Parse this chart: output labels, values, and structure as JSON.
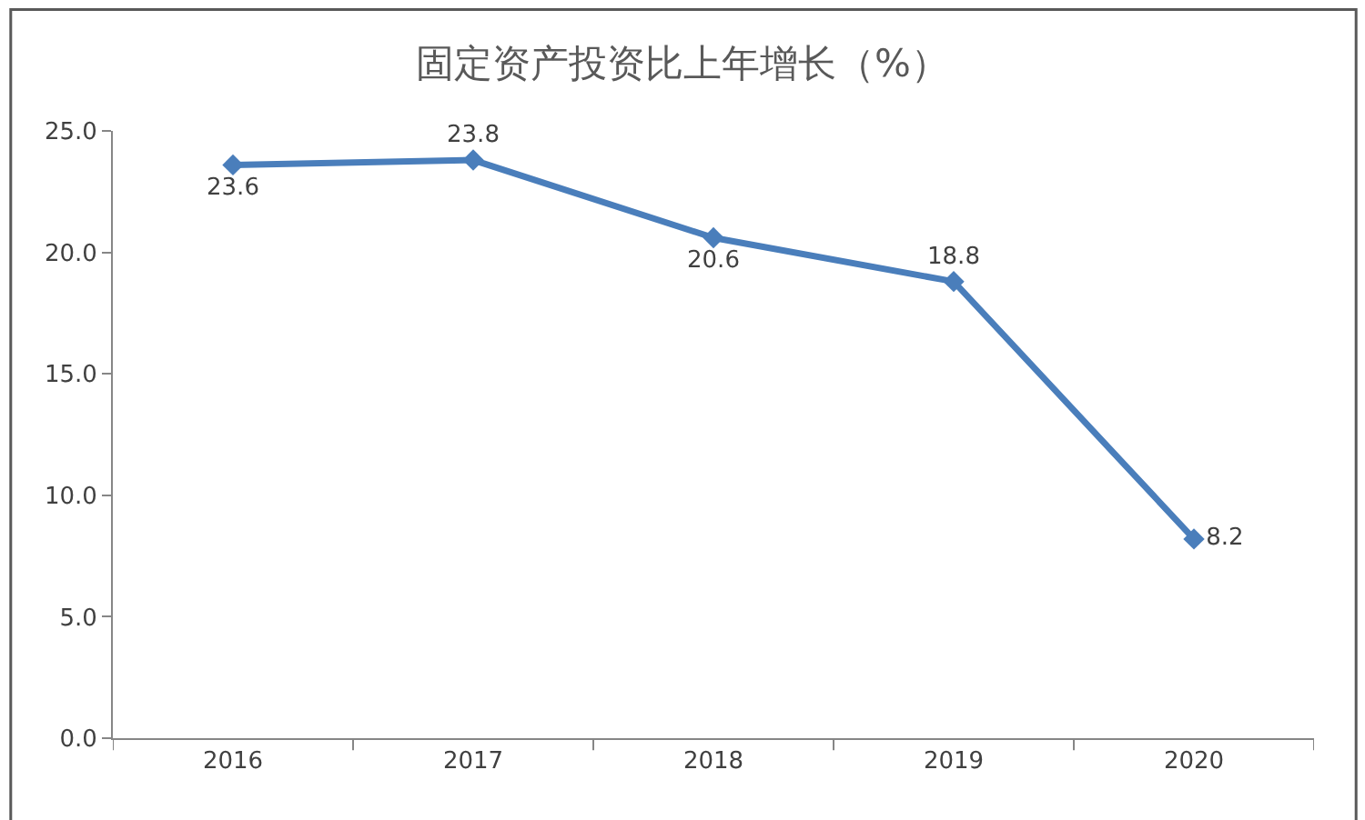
{
  "chart_data": {
    "type": "line",
    "title": "固定资产投资比上年增长（%）",
    "categories": [
      "2016",
      "2017",
      "2018",
      "2019",
      "2020"
    ],
    "series": [
      {
        "color": "#4a7ebb",
        "values": [
          23.6,
          23.8,
          20.6,
          18.8,
          8.2
        ]
      }
    ],
    "ylim": [
      0,
      25
    ],
    "yticks": [
      {
        "value": 0,
        "label": "0.0"
      },
      {
        "value": 5,
        "label": "5.0"
      },
      {
        "value": 10,
        "label": "10.0"
      },
      {
        "value": 15,
        "label": "15.0"
      },
      {
        "value": 20,
        "label": "20.0"
      },
      {
        "value": 25,
        "label": "25.0"
      }
    ],
    "data_labels": true,
    "grid": false,
    "legend": false,
    "marker": "diamond",
    "line_style": "solid"
  }
}
